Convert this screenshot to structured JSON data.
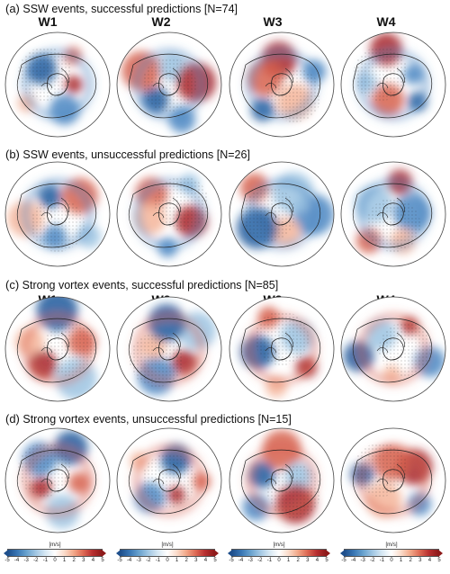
{
  "panels": [
    {
      "id": "a",
      "tag": "(a)",
      "title": "SSW events, successful predictions [N=74]",
      "weeks": [
        "W1",
        "W2",
        "W3",
        "W4"
      ]
    },
    {
      "id": "b",
      "tag": "(b)",
      "title": "SSW events, unsuccessful predictions [N=26]",
      "weeks": []
    },
    {
      "id": "c",
      "tag": "(c)",
      "title": "Strong vortex events, successful predictions [N=85]",
      "weeks": [
        "W1",
        "W2",
        "W3",
        "W4"
      ]
    },
    {
      "id": "d",
      "tag": "(d)",
      "title": "Strong vortex events, unsuccessful predictions [N=15]",
      "weeks": []
    }
  ],
  "colorbar": {
    "unit": "[m/s]",
    "ticks": [
      "-5",
      "-4",
      "-3",
      "-2",
      "-1",
      "0",
      "1",
      "2",
      "3",
      "4",
      "5"
    ],
    "colors": [
      "#1e4f8c",
      "#3a78b5",
      "#6aa3cf",
      "#a3c8e4",
      "#d7e8f3",
      "#ffffff",
      "#fbdccb",
      "#f2a98a",
      "#de6b55",
      "#b83031",
      "#8e1a1a"
    ]
  }
}
